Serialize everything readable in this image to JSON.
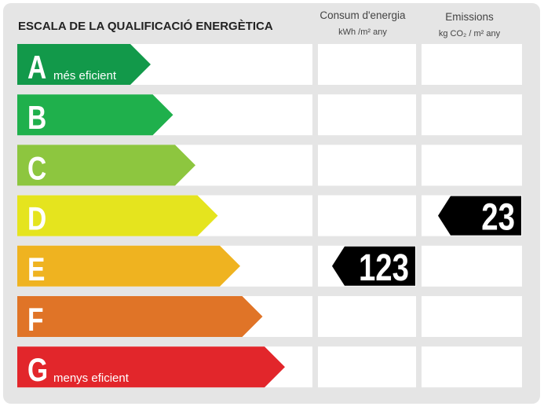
{
  "header": {
    "title": "ESCALA DE LA QUALIFICACIÓ ENERGÈTICA",
    "columns": [
      {
        "title": "Consum d'energia",
        "unit": "kWh /m² any"
      },
      {
        "title": "Emissions",
        "unit": "kg CO₂ / m² any"
      }
    ]
  },
  "rows": [
    {
      "letter": "A",
      "note": "més eficient",
      "color": "#12994a"
    },
    {
      "letter": "B",
      "color": "#1fb04c"
    },
    {
      "letter": "C",
      "color": "#8dc63f"
    },
    {
      "letter": "D",
      "color": "#e5e41e"
    },
    {
      "letter": "E",
      "color": "#efb320"
    },
    {
      "letter": "F",
      "color": "#e07427"
    },
    {
      "letter": "G",
      "note": "menys eficient",
      "color": "#e2262b"
    }
  ],
  "indicators": [
    {
      "value": "123",
      "rating": "E"
    },
    {
      "value": "23",
      "rating": "D"
    }
  ]
}
